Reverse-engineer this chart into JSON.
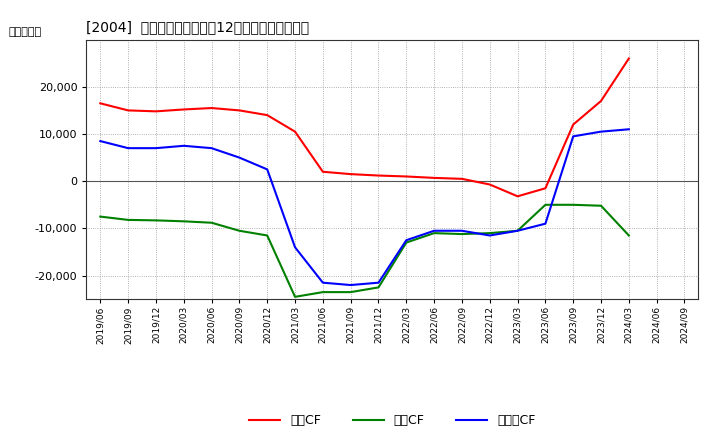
{
  "title": "[2004]  キャッシュフローの12か月移動合計の推移",
  "ylabel": "（百万円）",
  "background_color": "#ffffff",
  "plot_bg_color": "#ffffff",
  "grid_color": "#999999",
  "x_labels": [
    "2019/06",
    "2019/09",
    "2019/12",
    "2020/03",
    "2020/06",
    "2020/09",
    "2020/12",
    "2021/03",
    "2021/06",
    "2021/09",
    "2021/12",
    "2022/03",
    "2022/06",
    "2022/09",
    "2022/12",
    "2023/03",
    "2023/06",
    "2023/09",
    "2023/12",
    "2024/03",
    "2024/06",
    "2024/09"
  ],
  "eigyo_cf": [
    16500,
    15000,
    14800,
    15200,
    15500,
    15000,
    14000,
    10500,
    2000,
    1500,
    1200,
    1000,
    700,
    500,
    -700,
    -3200,
    -1500,
    12000,
    17000,
    26000,
    null,
    null
  ],
  "toshi_cf": [
    -7500,
    -8200,
    -8300,
    -8500,
    -8800,
    -10500,
    -11500,
    -24500,
    -23500,
    -23500,
    -22500,
    -13000,
    -11000,
    -11200,
    -11000,
    -10500,
    -5000,
    -5000,
    -5200,
    -11500,
    null,
    null
  ],
  "free_cf": [
    8500,
    7000,
    7000,
    7500,
    7000,
    5000,
    2500,
    -14000,
    -21500,
    -22000,
    -21500,
    -12500,
    -10500,
    -10500,
    -11500,
    -10500,
    -9000,
    9500,
    10500,
    11000,
    null,
    null
  ],
  "eigyo_color": "#ff0000",
  "toshi_color": "#008000",
  "free_color": "#0000ff",
  "ylim": [
    -25000,
    30000
  ],
  "yticks": [
    -20000,
    -10000,
    0,
    10000,
    20000
  ],
  "legend_labels": [
    "営業CF",
    "投資CF",
    "フリーCF"
  ]
}
